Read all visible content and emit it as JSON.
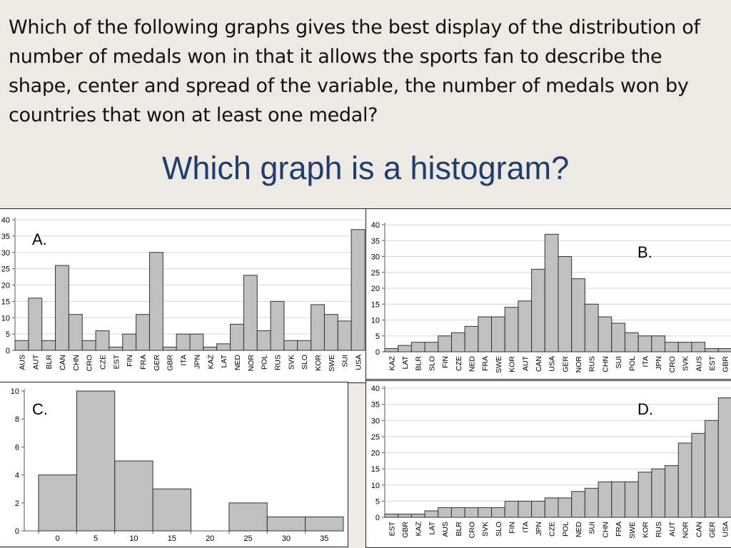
{
  "question": "Which of the following graphs gives the best display of the distribution of number of medals won in that it allows the sports fan to describe the shape, center and spread of the variable, the number of medals won by countries that won at least one medal?",
  "subtitle": "Which graph is a histogram?",
  "chart_data": [
    {
      "type": "bar",
      "label": "A.",
      "categories": [
        "AUS",
        "AUT",
        "BLR",
        "CAN",
        "CHN",
        "CRO",
        "CZE",
        "EST",
        "FIN",
        "FRA",
        "GER",
        "GBR",
        "ITA",
        "JPN",
        "KAZ",
        "LAT",
        "NED",
        "NOR",
        "POL",
        "RUS",
        "SVK",
        "SLO",
        "KOR",
        "SWE",
        "SUI",
        "USA"
      ],
      "values": [
        3,
        16,
        3,
        26,
        11,
        3,
        6,
        1,
        5,
        11,
        30,
        1,
        5,
        5,
        1,
        2,
        8,
        23,
        6,
        15,
        3,
        3,
        14,
        11,
        9,
        37
      ],
      "ylim": [
        0,
        40
      ],
      "yticks": [
        0,
        5,
        10,
        15,
        20,
        25,
        30,
        35,
        40
      ]
    },
    {
      "type": "bar",
      "label": "B.",
      "categories": [
        "KAZ",
        "LAT",
        "BLR",
        "SLO",
        "FIN",
        "CZE",
        "NED",
        "FRA",
        "SWE",
        "KOR",
        "AUT",
        "CAN",
        "USA",
        "GER",
        "NOR",
        "RUS",
        "CHN",
        "SUI",
        "POL",
        "ITA",
        "JPN",
        "CRO",
        "SVK",
        "AUS",
        "EST",
        "GBR"
      ],
      "values": [
        1,
        2,
        3,
        3,
        5,
        6,
        8,
        11,
        11,
        14,
        16,
        26,
        37,
        30,
        23,
        15,
        11,
        9,
        6,
        5,
        5,
        3,
        3,
        3,
        1,
        1
      ],
      "ylim": [
        0,
        40
      ],
      "yticks": [
        0,
        5,
        10,
        15,
        20,
        25,
        30,
        35,
        40
      ]
    },
    {
      "type": "bar",
      "label": "C.",
      "x": [
        0,
        5,
        10,
        15,
        20,
        25,
        30,
        35
      ],
      "xticks": [
        "0",
        "5",
        "10",
        "15",
        "20",
        "25",
        "30",
        "35"
      ],
      "values": [
        4,
        10,
        5,
        3,
        0,
        2,
        1,
        1
      ],
      "ylim": [
        0,
        10
      ],
      "yticks": [
        0,
        2,
        4,
        6,
        8,
        10
      ]
    },
    {
      "type": "bar",
      "label": "D.",
      "categories": [
        "EST",
        "GBR",
        "KAZ",
        "LAT",
        "AUS",
        "BLR",
        "CRO",
        "SVK",
        "SLO",
        "FIN",
        "ITA",
        "JPN",
        "CZE",
        "POL",
        "NED",
        "SUI",
        "CHN",
        "FRA",
        "SWE",
        "KOR",
        "RUS",
        "AUT",
        "NOR",
        "CAN",
        "GER",
        "USA"
      ],
      "values": [
        1,
        1,
        1,
        2,
        3,
        3,
        3,
        3,
        3,
        5,
        5,
        5,
        6,
        6,
        8,
        9,
        11,
        11,
        11,
        14,
        15,
        16,
        23,
        26,
        30,
        37
      ],
      "ylim": [
        0,
        40
      ],
      "yticks": [
        0,
        5,
        10,
        15,
        20,
        25,
        30,
        35,
        40
      ]
    }
  ]
}
